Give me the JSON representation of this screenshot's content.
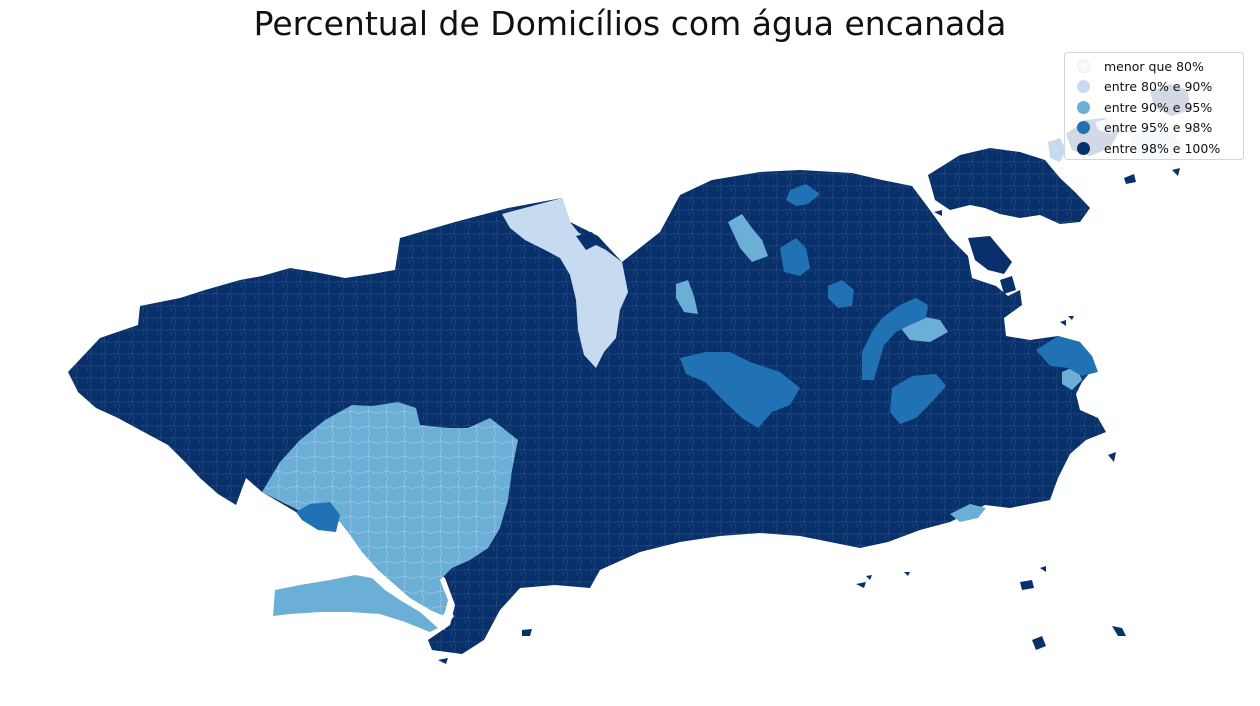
{
  "title": "Percentual de Domicílios com água encanada",
  "legend": {
    "items": [
      {
        "label": "menor que 80%",
        "color": "#f7fbff"
      },
      {
        "label": "entre 80% e 90%",
        "color": "#c6dbef"
      },
      {
        "label": "entre 90% e 95%",
        "color": "#6baed6"
      },
      {
        "label": "entre 95% e 98%",
        "color": "#2171b5"
      },
      {
        "label": "entre 98% e 100%",
        "color": "#08306b"
      }
    ]
  },
  "colors": {
    "class_98_100": "#08306b",
    "class_95_98": "#2171b5",
    "class_90_95": "#6baed6",
    "class_80_90": "#c6dbef",
    "class_lt_80": "#f7fbff",
    "tract_border": "#6b7fa3"
  }
}
